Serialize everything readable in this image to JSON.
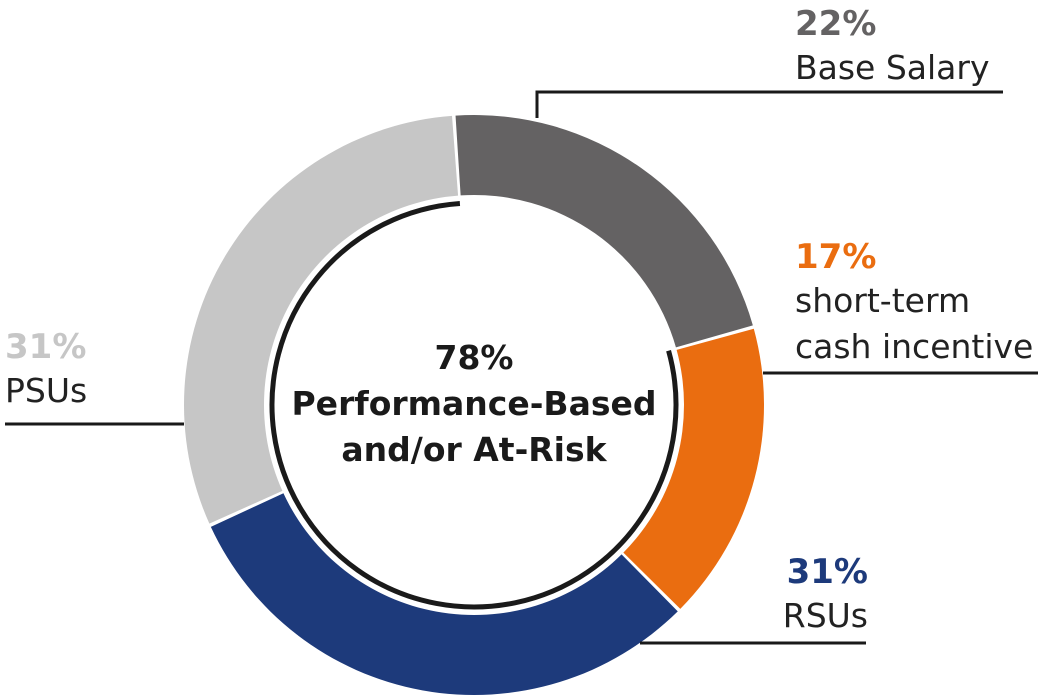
{
  "chart_data": {
    "type": "pie",
    "variant": "donut",
    "center_label": [
      "78%",
      "Performance-Based",
      "and/or At-Risk"
    ],
    "slices": [
      {
        "label_lines": [
          "Base Salary"
        ],
        "percent_label": "22%",
        "value": 22,
        "color": "#646263"
      },
      {
        "label_lines": [
          "short-term",
          "cash incentive"
        ],
        "percent_label": "17%",
        "value": 17,
        "color": "#ea6d10"
      },
      {
        "label_lines": [
          "RSUs"
        ],
        "percent_label": "31%",
        "value": 31,
        "color": "#1d3a7b"
      },
      {
        "label_lines": [
          "PSUs"
        ],
        "percent_label": "31%",
        "value": 31,
        "color": "#c6c6c6"
      }
    ],
    "percent_label_colors": [
      "#646263",
      "#ea6d10",
      "#1d3a7b",
      "#c6c6c6"
    ],
    "inner_arc_color": "#1a1a1a",
    "leader_line_color": "#1a1a1a"
  }
}
